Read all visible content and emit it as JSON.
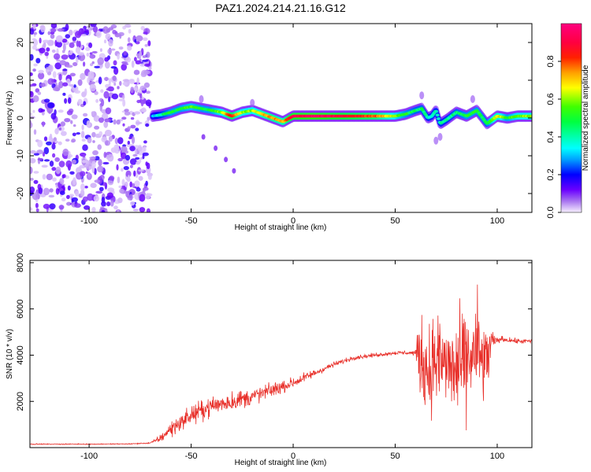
{
  "title": "PAZ1.2024.214.21.16.G12",
  "chart_data": [
    {
      "type": "heatmap",
      "xlabel": "Height of straight line (km)",
      "ylabel": "Frequency (Hz)",
      "xlim": [
        -129,
        117
      ],
      "ylim": [
        -25,
        25
      ],
      "xticks": [
        -100,
        -50,
        0,
        50,
        100
      ],
      "yticks": [
        -20,
        -10,
        0,
        10,
        20
      ],
      "noise_region_x": [
        -129,
        -70
      ],
      "ridge": {
        "x": [
          -69,
          -65,
          -60,
          -55,
          -50,
          -45,
          -40,
          -35,
          -30,
          -25,
          -20,
          -15,
          -10,
          -5,
          0,
          10,
          20,
          30,
          40,
          50,
          55,
          60,
          63,
          66,
          68,
          70,
          72,
          75,
          80,
          85,
          90,
          95,
          100,
          105,
          110,
          117
        ],
        "freq": [
          0.5,
          0.8,
          1.5,
          2.5,
          3.0,
          2.5,
          2.0,
          1.5,
          0.5,
          1.5,
          2.0,
          1.0,
          0.0,
          -1.0,
          0.5,
          0.5,
          0.5,
          0.5,
          0.5,
          0.5,
          1.0,
          2.0,
          2.5,
          0.0,
          0.5,
          2.0,
          -1.5,
          -0.5,
          1.5,
          0.5,
          2.0,
          -1.5,
          0.5,
          0.0,
          0.5,
          0.5
        ],
        "amplitude": [
          0.3,
          0.4,
          0.5,
          0.5,
          0.55,
          0.5,
          0.5,
          0.6,
          0.85,
          0.6,
          0.6,
          0.7,
          0.75,
          0.7,
          0.9,
          0.95,
          0.9,
          0.85,
          0.8,
          0.6,
          0.5,
          0.45,
          0.45,
          0.4,
          0.4,
          0.4,
          0.4,
          0.4,
          0.45,
          0.5,
          0.5,
          0.45,
          0.7,
          0.5,
          0.6,
          0.6
        ]
      },
      "secondary_trace": {
        "x": [
          -44,
          -38,
          -33,
          -29
        ],
        "freq": [
          -5,
          -8,
          -11,
          -14
        ]
      },
      "colorbar": {
        "label": "Normalized spectral amplitude",
        "range": [
          0.0,
          1.0
        ],
        "ticks": [
          0.0,
          0.2,
          0.4,
          0.6,
          0.8
        ],
        "tick_labels": [
          "0.0",
          "0.2",
          "0.4",
          "0.6",
          "0.8"
        ],
        "colormap": "hsv-rainbow (white-violet-blue-cyan-green-yellow-red-magenta)"
      }
    },
    {
      "type": "line",
      "xlabel": "Height of straight line (km)",
      "ylabel": "SNR (10 * v/v)",
      "xlim": [
        -129,
        117
      ],
      "ylim": [
        0,
        8100
      ],
      "xticks": [
        -100,
        -50,
        0,
        50,
        100
      ],
      "yticks": [
        2000,
        4000,
        6000,
        8000
      ],
      "color": "#e8302a",
      "envelope": {
        "x": [
          -129,
          -100,
          -80,
          -70,
          -65,
          -60,
          -55,
          -50,
          -40,
          -30,
          -20,
          -10,
          0,
          10,
          20,
          30,
          40,
          50,
          60,
          62,
          64,
          66,
          70,
          75,
          80,
          85,
          88,
          90,
          94,
          97,
          99,
          102,
          110,
          117
        ],
        "mean": [
          150,
          150,
          160,
          200,
          400,
          800,
          1100,
          1400,
          1800,
          2000,
          2200,
          2500,
          2800,
          3200,
          3600,
          3900,
          4000,
          4100,
          4100,
          4000,
          3600,
          3300,
          3800,
          3600,
          3300,
          3700,
          4000,
          4200,
          3500,
          4500,
          4600,
          4700,
          4600,
          4600
        ],
        "spread": [
          30,
          30,
          30,
          40,
          250,
          500,
          550,
          600,
          600,
          650,
          550,
          450,
          350,
          250,
          150,
          150,
          120,
          120,
          150,
          2500,
          2700,
          2800,
          3000,
          3000,
          3200,
          3200,
          3500,
          3400,
          3000,
          1200,
          250,
          180,
          150,
          150
        ]
      }
    }
  ]
}
